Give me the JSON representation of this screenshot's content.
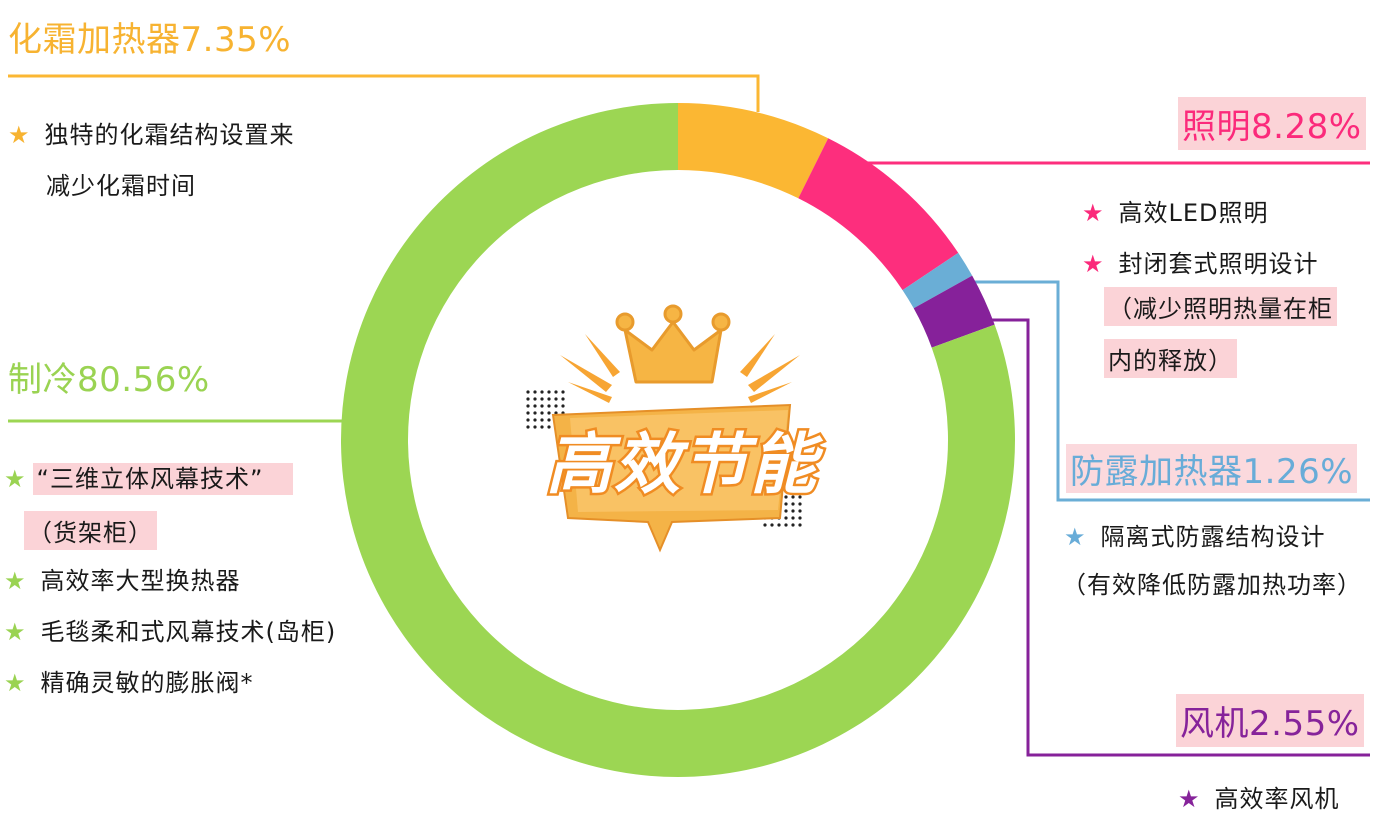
{
  "chart_data": {
    "type": "pie",
    "title": "",
    "center_label": "高效节能",
    "categories": [
      "化霜加热器",
      "照明",
      "防露加热器",
      "风机",
      "制冷"
    ],
    "values": [
      7.35,
      8.28,
      1.26,
      2.55,
      80.56
    ],
    "slices": [
      {
        "name": "化霜加热器",
        "value": 7.35,
        "label": "化霜加热器7.35%",
        "color": "#fbb733",
        "notes": [
          "独特的化霜结构设置来",
          "减少化霜时间"
        ]
      },
      {
        "name": "照明",
        "value": 8.28,
        "label": "照明8.28%",
        "color": "#fd2e7d",
        "notes": [
          "高效LED照明",
          "封闭套式照明设计",
          "（减少照明热量在柜",
          "内的释放）"
        ]
      },
      {
        "name": "防露加热器",
        "value": 1.26,
        "label": "防露加热器1.26%",
        "color": "#6aaed6",
        "notes": [
          "隔离式防露结构设计",
          "（有效降低防露加热功率）"
        ]
      },
      {
        "name": "风机",
        "value": 2.55,
        "label": "风机2.55%",
        "color": "#86219a",
        "notes": [
          "高效率风机"
        ]
      },
      {
        "name": "制冷",
        "value": 80.56,
        "label": "制冷80.56%",
        "color": "#9cd653",
        "notes": [
          "“三维立体风幕技术”",
          "（货架柜）",
          "高效率大型换热器",
          "毛毯柔和式风幕技术(岛柜)",
          "精确灵敏的膨胀阀*"
        ]
      }
    ],
    "star_icon": "star-icon",
    "badge_icon": "crown-icon"
  }
}
